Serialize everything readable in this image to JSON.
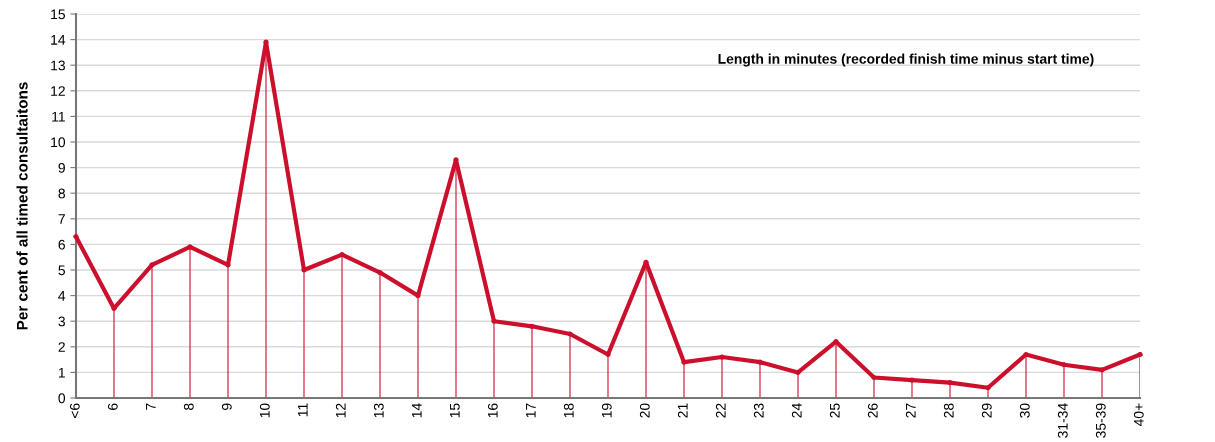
{
  "chart_data": {
    "type": "line",
    "ylabel": "Per cent of all timed consultaitons",
    "annotations": [
      "Length in minutes (recorded finish time minus start time)"
    ],
    "categories": [
      "<6",
      "6",
      "7",
      "8",
      "9",
      "10",
      "11",
      "12",
      "13",
      "14",
      "15",
      "16",
      "17",
      "18",
      "19",
      "20",
      "21",
      "22",
      "23",
      "24",
      "25",
      "26",
      "27",
      "28",
      "29",
      "30",
      "31-34",
      "35-39",
      "40+"
    ],
    "series": [
      {
        "type": "lollipop",
        "color": "#cc0f2c",
        "values": [
          6.3,
          3.5,
          5.2,
          5.9,
          5.2,
          13.9,
          5.0,
          5.6,
          4.9,
          4.0,
          9.3,
          3.0,
          2.8,
          2.5,
          1.7,
          5.3,
          1.4,
          1.6,
          1.4,
          1.0,
          2.2,
          0.8,
          0.7,
          0.6,
          0.4,
          1.7,
          1.3,
          1.1,
          1.7
        ]
      },
      {
        "color": "#cc0f2c",
        "values": [
          6.3,
          3.5,
          5.2,
          5.9,
          5.2,
          13.9,
          5.0,
          5.6,
          4.9,
          4.0,
          9.3,
          3.0,
          2.8,
          2.5,
          1.7,
          5.3,
          1.4,
          1.6,
          1.4,
          1.0,
          2.2,
          0.8,
          0.7,
          0.6,
          0.4,
          1.7,
          1.3,
          1.1,
          1.7
        ]
      }
    ],
    "ylim": [
      0,
      15
    ],
    "yticks": [
      0,
      1,
      2,
      3,
      4,
      5,
      6,
      7,
      8,
      9,
      10,
      11,
      12,
      13,
      14,
      15
    ],
    "grid": "y",
    "marker": "none",
    "line_style": "solid"
  }
}
